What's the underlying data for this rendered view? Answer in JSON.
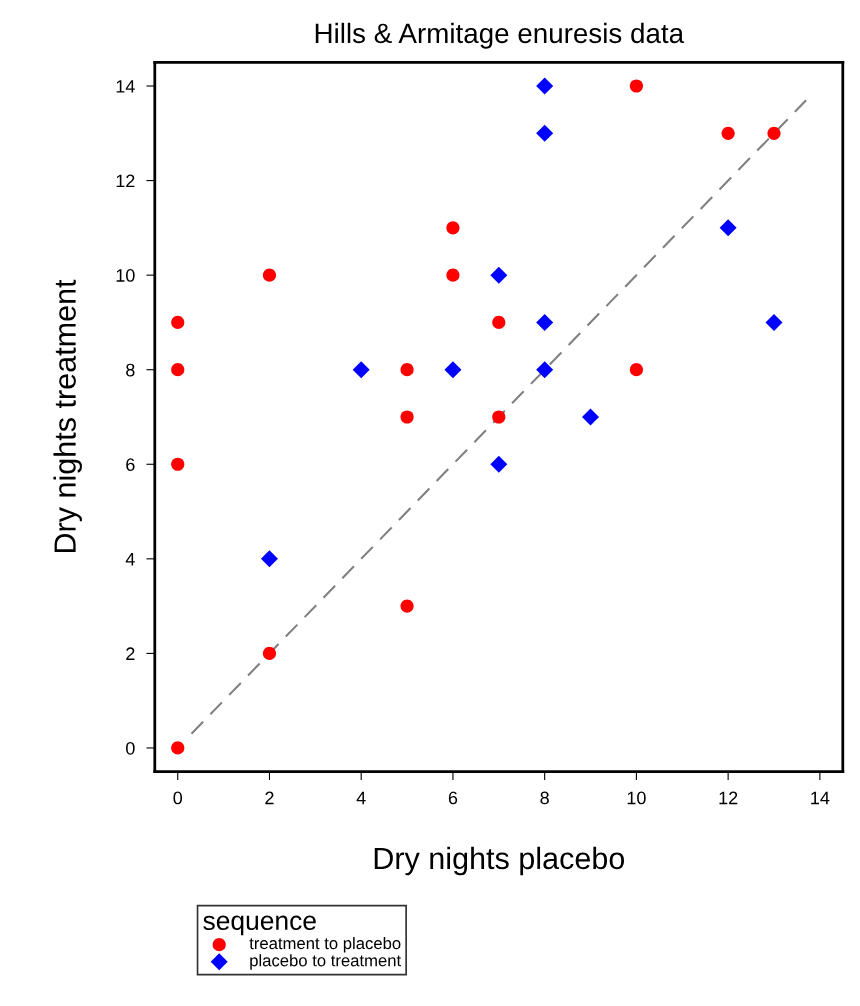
{
  "chart_data": {
    "type": "scatter",
    "title": "Hills & Armitage enuresis data",
    "xlabel": "Dry nights placebo",
    "ylabel": "Dry nights treatment",
    "legend_title": "sequence",
    "series": [
      {
        "name": "treatment to placebo",
        "color": "#ff0000",
        "marker": "circle",
        "x": [
          0,
          0,
          0,
          0,
          2,
          2,
          5,
          5,
          5,
          6,
          6,
          7,
          7,
          10,
          10,
          12,
          13
        ],
        "values": [
          0,
          6,
          8,
          9,
          2,
          10,
          3,
          7,
          8,
          10,
          11,
          7,
          9,
          8,
          14,
          13,
          13
        ]
      },
      {
        "name": "placebo to treatment",
        "color": "#0000ff",
        "marker": "diamond",
        "x": [
          2,
          4,
          6,
          7,
          7,
          8,
          8,
          8,
          8,
          9,
          12,
          13
        ],
        "values": [
          4,
          8,
          8,
          6,
          10,
          8,
          9,
          13,
          14,
          7,
          11,
          9
        ]
      },
      {
        "type": "line",
        "color": "#808080",
        "line_style": "dashed",
        "marker": "none",
        "x": [
          0.3,
          13.7
        ],
        "values": [
          0.3,
          13.7
        ]
      }
    ],
    "xlim": [
      -0.5,
      14.5
    ],
    "ylim": [
      -0.5,
      14.5
    ],
    "xticks": [
      0,
      2,
      4,
      6,
      8,
      10,
      12,
      14
    ],
    "yticks": [
      0,
      2,
      4,
      6,
      8,
      10,
      12,
      14
    ],
    "grid": false,
    "legend": "bottom left"
  }
}
